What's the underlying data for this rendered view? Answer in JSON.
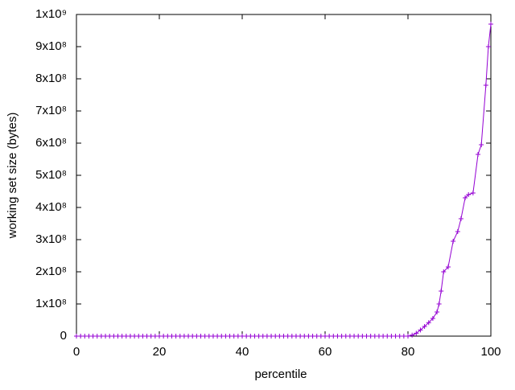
{
  "chart_data": {
    "type": "line",
    "xlabel": "percentile",
    "ylabel": "working set size (bytes)",
    "xlim": [
      0,
      100
    ],
    "ylim": [
      0,
      1000000000
    ],
    "xticks": [
      0,
      20,
      40,
      60,
      80,
      100
    ],
    "yticks": [
      0,
      {
        "value": 100000000,
        "label": "1x10⁸"
      },
      {
        "value": 200000000,
        "label": "2x10⁸"
      },
      {
        "value": 300000000,
        "label": "3x10⁸"
      },
      {
        "value": 400000000,
        "label": "4x10⁸"
      },
      {
        "value": 500000000,
        "label": "5x10⁸"
      },
      {
        "value": 600000000,
        "label": "6x10⁸"
      },
      {
        "value": 700000000,
        "label": "7x10⁸"
      },
      {
        "value": 800000000,
        "label": "8x10⁸"
      },
      {
        "value": 900000000,
        "label": "9x10⁸"
      },
      {
        "value": 1000000000,
        "label": "1x10⁹"
      }
    ],
    "x": [
      0,
      1,
      2,
      3,
      4,
      5,
      6,
      7,
      8,
      9,
      10,
      11,
      12,
      13,
      14,
      15,
      16,
      17,
      18,
      19,
      20,
      21,
      22,
      23,
      24,
      25,
      26,
      27,
      28,
      29,
      30,
      31,
      32,
      33,
      34,
      35,
      36,
      37,
      38,
      39,
      40,
      41,
      42,
      43,
      44,
      45,
      46,
      47,
      48,
      49,
      50,
      51,
      52,
      53,
      54,
      55,
      56,
      57,
      58,
      59,
      60,
      61,
      62,
      63,
      64,
      65,
      66,
      67,
      68,
      69,
      70,
      71,
      72,
      73,
      74,
      75,
      76,
      77,
      78,
      79,
      80,
      81,
      82,
      83,
      84,
      85,
      86,
      87,
      87.5,
      88,
      88.6,
      89.7,
      90.9,
      92,
      92.8,
      93.8,
      94.6,
      95.7,
      96.9,
      97.7,
      98.8,
      99.4,
      100
    ],
    "series": [
      {
        "color": "#9400d3",
        "values": [
          0,
          0,
          0,
          0,
          0,
          0,
          0,
          0,
          0,
          0,
          0,
          0,
          0,
          0,
          0,
          0,
          0,
          0,
          0,
          0,
          0,
          0,
          0,
          0,
          0,
          0,
          0,
          0,
          0,
          0,
          0,
          0,
          0,
          0,
          0,
          0,
          0,
          0,
          0,
          0,
          0,
          0,
          0,
          0,
          0,
          0,
          0,
          0,
          0,
          0,
          0,
          0,
          0,
          0,
          0,
          0,
          0,
          0,
          0,
          0,
          0,
          0,
          0,
          0,
          0,
          0,
          0,
          0,
          0,
          0,
          0,
          0,
          0,
          0,
          0,
          0,
          0,
          0,
          0,
          0,
          0,
          3000000,
          9000000,
          19000000,
          30000000,
          42000000,
          55000000,
          75000000,
          100000000,
          140000000,
          200000000,
          215000000,
          295000000,
          325000000,
          365000000,
          430000000,
          440000000,
          445000000,
          565000000,
          595000000,
          780000000,
          900000000,
          970000000
        ]
      }
    ]
  }
}
